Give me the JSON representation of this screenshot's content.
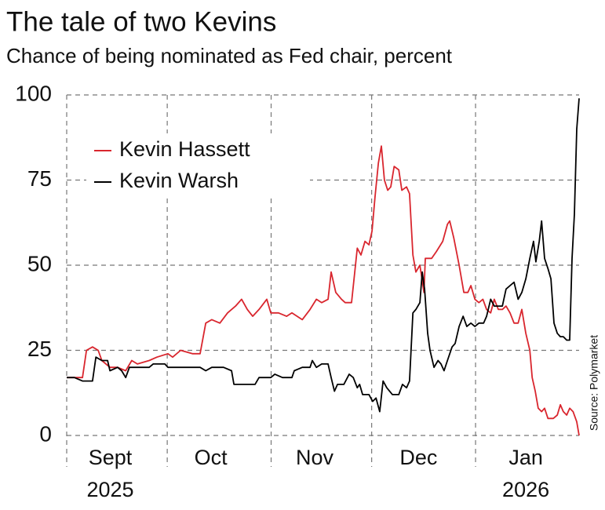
{
  "chart_data": {
    "type": "line",
    "title": "The tale of two Kevins",
    "subtitle": "Chance of being nominated as Fed chair, percent",
    "source": "Source: Polymarket",
    "xlim": [
      0,
      152.9
    ],
    "xticks": [
      {
        "value": 13,
        "label": "Sept",
        "sublabel": "2025"
      },
      {
        "value": 43,
        "label": "Oct"
      },
      {
        "value": 74,
        "label": "Nov"
      },
      {
        "value": 105,
        "label": "Dec"
      },
      {
        "value": 137,
        "label": "Jan",
        "sublabel": "2026"
      }
    ],
    "xgrid": [
      0,
      30,
      61,
      91,
      122
    ],
    "ylim": [
      0,
      100
    ],
    "yticks": [
      0,
      25,
      50,
      75,
      100
    ],
    "grid": true,
    "legend": "upper-left",
    "series": [
      {
        "name": "Kevin Hassett",
        "color": "#d9262e",
        "x": [
          0,
          3.5,
          4.7,
          5.9,
          7.7,
          9.4,
          10.5,
          12.9,
          15.2,
          17.6,
          19.4,
          21.1,
          24.6,
          26.9,
          30.2,
          31.6,
          34.0,
          37.5,
          39.8,
          41.5,
          43.3,
          45.7,
          48.0,
          50.4,
          52.2,
          53.9,
          55.5,
          57.4,
          59.7,
          60.9,
          63.2,
          65.6,
          67.2,
          70.3,
          72.6,
          74.5,
          76.1,
          78.0,
          78.9,
          80.3,
          82.0,
          83.1,
          85.0,
          86.7,
          87.8,
          89.0,
          90.2,
          91.1,
          92.0,
          93.0,
          93.9,
          94.8,
          95.8,
          96.7,
          97.7,
          99.1,
          100.0,
          101.4,
          102.3,
          103.3,
          104.2,
          105.4,
          106.6,
          107.0,
          108.9,
          110.3,
          112.2,
          113.6,
          114.3,
          115.5,
          117.1,
          118.5,
          119.7,
          120.6,
          121.8,
          123.0,
          124.2,
          125.3,
          126.5,
          127.6,
          128.8,
          130.0,
          131.1,
          132.3,
          133.5,
          134.7,
          135.8,
          137.0,
          138.2,
          138.9,
          139.8,
          140.7,
          141.7,
          142.6,
          143.6,
          145.2,
          146.4,
          147.3,
          148.2,
          149.2,
          150.1,
          151.1,
          152.2,
          152.9
        ],
        "values": [
          17,
          17,
          17,
          25,
          26,
          25,
          22,
          20,
          20,
          19,
          22,
          21,
          22,
          23,
          24,
          23,
          25,
          24,
          24,
          33,
          34,
          33,
          36,
          38,
          40,
          37,
          35,
          37,
          40,
          36,
          36,
          35,
          36,
          34,
          37,
          40,
          39,
          40,
          48,
          42,
          40,
          39,
          39,
          55,
          53,
          57,
          56,
          60,
          70,
          80,
          85,
          75,
          72,
          73,
          79,
          78,
          72,
          73,
          71,
          53,
          48,
          50,
          42,
          52,
          52,
          54,
          57,
          62,
          63,
          58,
          50,
          42,
          42,
          44,
          40,
          39,
          40,
          37,
          36,
          40,
          37,
          37,
          38,
          36,
          33,
          33,
          37,
          30,
          25,
          17,
          13,
          8,
          7,
          8,
          5,
          5,
          6,
          9,
          7,
          6,
          8,
          7,
          4,
          0
        ]
      },
      {
        "name": "Kevin Warsh",
        "color": "#000000",
        "x": [
          0,
          2.3,
          4.7,
          7.7,
          8.7,
          10.5,
          12.2,
          12.9,
          15.2,
          16.4,
          17.6,
          18.7,
          21.1,
          24.6,
          25.8,
          29.3,
          30.2,
          36.3,
          39.8,
          41.5,
          43.3,
          46.8,
          49.2,
          49.9,
          55.0,
          56.2,
          57.4,
          59.3,
          60.9,
          62.1,
          64.4,
          67.2,
          67.9,
          70.3,
          72.6,
          73.3,
          74.5,
          76.1,
          78.0,
          78.9,
          79.9,
          80.8,
          82.7,
          84.3,
          85.5,
          86.7,
          87.4,
          88.3,
          90.2,
          91.3,
          92.3,
          93.4,
          94.4,
          95.5,
          97.2,
          99.1,
          100.2,
          101.4,
          102.3,
          103.3,
          104.2,
          105.4,
          106.1,
          106.8,
          107.7,
          108.4,
          109.6,
          110.8,
          111.7,
          112.6,
          113.6,
          115.0,
          115.9,
          117.1,
          118.3,
          119.4,
          120.6,
          121.8,
          123.0,
          124.4,
          125.3,
          126.5,
          127.6,
          129.0,
          130.0,
          131.1,
          132.3,
          133.5,
          134.7,
          135.8,
          137.0,
          138.2,
          139.3,
          140.0,
          141.0,
          141.7,
          142.6,
          143.6,
          144.5,
          145.4,
          146.4,
          147.3,
          148.2,
          149.2,
          150.1,
          150.8,
          151.5,
          152.2,
          152.9
        ],
        "values": [
          17,
          17,
          16,
          16,
          23,
          22,
          22,
          19,
          20,
          19,
          17,
          20,
          20,
          20,
          21,
          21,
          20,
          20,
          20,
          19,
          20,
          20,
          19,
          15,
          15,
          15,
          17,
          17,
          17,
          18,
          17,
          17,
          19,
          20,
          20,
          22,
          20,
          21,
          21,
          17,
          13,
          15,
          15,
          18,
          17,
          14,
          15,
          12,
          12,
          10,
          11,
          7,
          16,
          14,
          12,
          12,
          15,
          14,
          16,
          36,
          37,
          39,
          48,
          43,
          30,
          25,
          20,
          22,
          21,
          19,
          22,
          26,
          27,
          32,
          35,
          32,
          33,
          32,
          33,
          33,
          35,
          40,
          38,
          38,
          38,
          43,
          44,
          45,
          40,
          42,
          46,
          52,
          57,
          51,
          57,
          63,
          52,
          49,
          46,
          33,
          30,
          29,
          29,
          28,
          28,
          52,
          65,
          90,
          99
        ]
      }
    ]
  }
}
